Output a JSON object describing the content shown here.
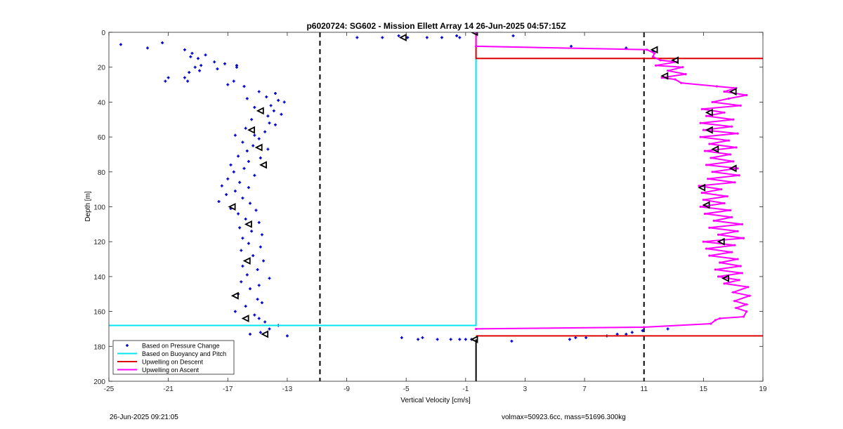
{
  "chart_data": {
    "type": "scatter",
    "title": "p6020724: SG602 - Mission Ellett Array 14 26-Jun-2025 04:57:15Z",
    "xlabel": "Vertical Velocity [cm/s]",
    "ylabel": "Depth [m]",
    "xlim": [
      -25,
      19
    ],
    "ylim": [
      0,
      200
    ],
    "y_reversed": true,
    "xticks": [
      -25,
      -21,
      -17,
      -13,
      -9,
      -5,
      -1,
      3,
      7,
      11,
      15,
      19
    ],
    "yticks": [
      0,
      20,
      40,
      60,
      80,
      100,
      120,
      140,
      160,
      180,
      200
    ],
    "grid": false,
    "legend_position": "bottom-left",
    "vlines_dashed": [
      -10.8,
      11.0
    ],
    "colors": {
      "pressure": "#0000cc",
      "buoyancy": "#00e5ee",
      "descent": "#dd0000",
      "ascent": "#ff00ff",
      "marker": "#000000"
    },
    "series": [
      {
        "name": "Based on Pressure Change",
        "style": "points",
        "points": [
          [
            -24.2,
            7
          ],
          [
            -22.4,
            9
          ],
          [
            -21.4,
            6
          ],
          [
            -19.9,
            10
          ],
          [
            -19.4,
            12
          ],
          [
            -19.5,
            14
          ],
          [
            -19.0,
            15
          ],
          [
            -18.5,
            13
          ],
          [
            -18.8,
            19
          ],
          [
            -17.9,
            17
          ],
          [
            -17.2,
            18
          ],
          [
            -16.4,
            19
          ],
          [
            -16.4,
            20
          ],
          [
            -19.2,
            20
          ],
          [
            -19.6,
            23
          ],
          [
            -19.9,
            26
          ],
          [
            -21.0,
            26
          ],
          [
            -21.2,
            28
          ],
          [
            -19.7,
            28
          ],
          [
            -18.9,
            22
          ],
          [
            -17.7,
            21
          ],
          [
            -17.0,
            30
          ],
          [
            -16.6,
            28
          ],
          [
            -15.9,
            31
          ],
          [
            -14.9,
            34
          ],
          [
            -13.8,
            35
          ],
          [
            -14.4,
            37
          ],
          [
            -15.7,
            38
          ],
          [
            -13.6,
            39
          ],
          [
            -13.2,
            40
          ],
          [
            -14.1,
            42
          ],
          [
            -15.2,
            43
          ],
          [
            -13.9,
            45
          ],
          [
            -13.4,
            47
          ],
          [
            -14.3,
            48
          ],
          [
            -15.4,
            50
          ],
          [
            -14.2,
            52
          ],
          [
            -13.8,
            53
          ],
          [
            -15.8,
            55
          ],
          [
            -14.5,
            57
          ],
          [
            -16.5,
            59
          ],
          [
            -15.2,
            59
          ],
          [
            -14.9,
            61
          ],
          [
            -16.0,
            63
          ],
          [
            -15.3,
            65
          ],
          [
            -14.3,
            67
          ],
          [
            -15.7,
            68
          ],
          [
            -16.3,
            71
          ],
          [
            -14.8,
            72
          ],
          [
            -15.6,
            74
          ],
          [
            -16.8,
            76
          ],
          [
            -15.9,
            78
          ],
          [
            -16.6,
            80
          ],
          [
            -15.2,
            82
          ],
          [
            -17.0,
            84
          ],
          [
            -16.2,
            86
          ],
          [
            -17.4,
            88
          ],
          [
            -15.6,
            89
          ],
          [
            -16.5,
            91
          ],
          [
            -17.1,
            93
          ],
          [
            -16.0,
            95
          ],
          [
            -17.6,
            97
          ],
          [
            -15.5,
            98
          ],
          [
            -16.8,
            101
          ],
          [
            -15.1,
            102
          ],
          [
            -16.3,
            104
          ],
          [
            -15.8,
            107
          ],
          [
            -14.9,
            109
          ],
          [
            -16.2,
            112
          ],
          [
            -15.4,
            114
          ],
          [
            -14.7,
            116
          ],
          [
            -16.0,
            118
          ],
          [
            -15.6,
            121
          ],
          [
            -14.8,
            123
          ],
          [
            -16.1,
            125
          ],
          [
            -15.3,
            128
          ],
          [
            -14.6,
            131
          ],
          [
            -16.0,
            134
          ],
          [
            -15.0,
            136
          ],
          [
            -15.7,
            139
          ],
          [
            -14.2,
            141
          ],
          [
            -16.1,
            143
          ],
          [
            -14.9,
            145
          ],
          [
            -15.5,
            147
          ],
          [
            -16.3,
            150
          ],
          [
            -15.0,
            153
          ],
          [
            -14.7,
            155
          ],
          [
            -15.8,
            157
          ],
          [
            -16.5,
            160
          ],
          [
            -15.2,
            162
          ],
          [
            -14.9,
            164
          ],
          [
            -14.5,
            166
          ],
          [
            -13.6,
            168
          ],
          [
            -14.2,
            170
          ],
          [
            -14.8,
            172
          ],
          [
            -13.0,
            174
          ],
          [
            -15.5,
            173
          ],
          [
            -8.3,
            3
          ],
          [
            -6.6,
            3
          ],
          [
            -5.5,
            2
          ],
          [
            -4.9,
            3
          ],
          [
            -3.6,
            3
          ],
          [
            -2.6,
            3
          ],
          [
            -1.6,
            2
          ],
          [
            -1.4,
            3
          ],
          [
            -5.3,
            175
          ],
          [
            -4.2,
            176
          ],
          [
            -3.9,
            175
          ],
          [
            -2.9,
            176
          ],
          [
            -2.0,
            176
          ],
          [
            -1.4,
            176
          ],
          [
            -1.0,
            176
          ],
          [
            -0.6,
            176
          ],
          [
            2.2,
            2
          ],
          [
            2.1,
            177
          ],
          [
            6.1,
            8
          ],
          [
            9.8,
            9
          ],
          [
            11.6,
            11
          ],
          [
            6.0,
            176
          ],
          [
            6.4,
            175
          ],
          [
            7.1,
            175
          ],
          [
            8.5,
            174
          ],
          [
            9.2,
            173
          ],
          [
            9.8,
            173
          ],
          [
            10.2,
            172
          ],
          [
            10.9,
            171
          ],
          [
            12.6,
            170
          ]
        ]
      },
      {
        "name": "Based on Buoyancy and Pitch",
        "style": "line",
        "points": [
          [
            -0.3,
            15
          ],
          [
            -0.3,
            168
          ],
          [
            -25,
            168
          ]
        ]
      },
      {
        "name": "Upwelling on Descent",
        "style": "line",
        "points": [
          [
            -0.3,
            0
          ],
          [
            -0.3,
            15
          ],
          [
            19,
            15
          ],
          null,
          [
            -0.3,
            174
          ],
          [
            19,
            174
          ]
        ]
      },
      {
        "name": "Upwelling on Ascent",
        "style": "line",
        "points": [
          [
            -0.3,
            170
          ],
          [
            11.0,
            169
          ],
          [
            15.5,
            167
          ],
          [
            15.8,
            165
          ],
          [
            16.1,
            164
          ],
          [
            17.7,
            163
          ],
          [
            17.9,
            160
          ],
          [
            17.2,
            158
          ],
          [
            17.9,
            156
          ],
          [
            17.1,
            154
          ],
          [
            18.1,
            151
          ],
          [
            17.0,
            149
          ],
          [
            18.0,
            146
          ],
          [
            16.4,
            144
          ],
          [
            17.4,
            142
          ],
          [
            16.0,
            140
          ],
          [
            17.6,
            138
          ],
          [
            15.8,
            136
          ],
          [
            17.5,
            134
          ],
          [
            16.1,
            132
          ],
          [
            17.3,
            130
          ],
          [
            15.4,
            128
          ],
          [
            16.9,
            126
          ],
          [
            15.2,
            124
          ],
          [
            17.1,
            122
          ],
          [
            15.0,
            120
          ],
          [
            17.7,
            118
          ],
          [
            16.0,
            116
          ],
          [
            17.3,
            114
          ],
          [
            15.4,
            112
          ],
          [
            17.6,
            110
          ],
          [
            15.7,
            108
          ],
          [
            16.9,
            106
          ],
          [
            15.1,
            104
          ],
          [
            16.8,
            102
          ],
          [
            14.8,
            100
          ],
          [
            16.4,
            98
          ],
          [
            15.0,
            96
          ],
          [
            16.6,
            94
          ],
          [
            14.9,
            92
          ],
          [
            16.2,
            90
          ],
          [
            14.7,
            88
          ],
          [
            17.1,
            86
          ],
          [
            15.3,
            84
          ],
          [
            17.4,
            82
          ],
          [
            15.6,
            80
          ],
          [
            17.3,
            78
          ],
          [
            15.2,
            76
          ],
          [
            17.0,
            74
          ],
          [
            15.5,
            72
          ],
          [
            16.8,
            70
          ],
          [
            15.1,
            68
          ],
          [
            17.2,
            66
          ],
          [
            15.4,
            64
          ],
          [
            16.7,
            62
          ],
          [
            14.8,
            60
          ],
          [
            17.3,
            58
          ],
          [
            15.0,
            56
          ],
          [
            16.9,
            54
          ],
          [
            14.8,
            52
          ],
          [
            17.0,
            50
          ],
          [
            15.2,
            48
          ],
          [
            16.4,
            46
          ],
          [
            14.9,
            44
          ],
          [
            17.5,
            42
          ],
          [
            15.6,
            40
          ],
          [
            16.7,
            38
          ],
          [
            17.9,
            36
          ],
          [
            16.4,
            34
          ],
          [
            17.2,
            32
          ],
          [
            15.9,
            31
          ],
          [
            13.5,
            29
          ],
          [
            13.1,
            27
          ],
          [
            12.2,
            26
          ],
          [
            13.8,
            24
          ],
          [
            12.6,
            22
          ],
          [
            13.6,
            20
          ],
          [
            11.8,
            19
          ],
          [
            13.2,
            17
          ],
          [
            12.1,
            16
          ],
          [
            11.6,
            14
          ],
          [
            11.7,
            12
          ],
          [
            11.2,
            10
          ],
          [
            -0.3,
            8
          ],
          [
            -0.3,
            0
          ]
        ]
      }
    ],
    "markers": {
      "style": "triangle",
      "points": [
        [
          -0.4,
          0
        ],
        [
          -5.2,
          3
        ],
        [
          -14.8,
          45
        ],
        [
          -15.4,
          56
        ],
        [
          -14.9,
          66
        ],
        [
          -14.6,
          76
        ],
        [
          -16.7,
          100
        ],
        [
          -15.6,
          110
        ],
        [
          -15.7,
          131
        ],
        [
          -16.5,
          151
        ],
        [
          -15.8,
          164
        ],
        [
          -14.5,
          173
        ],
        [
          -0.4,
          176
        ],
        [
          11.7,
          10
        ],
        [
          13.1,
          16
        ],
        [
          12.4,
          25
        ],
        [
          17.0,
          34
        ],
        [
          15.4,
          46
        ],
        [
          15.4,
          56
        ],
        [
          15.8,
          67
        ],
        [
          17.0,
          78
        ],
        [
          14.9,
          89
        ],
        [
          15.2,
          99
        ],
        [
          16.2,
          120
        ],
        [
          16.5,
          141
        ]
      ]
    }
  },
  "footer": {
    "timestamp": "26-Jun-2025 09:21:05",
    "stats": "volmax=50923.6cc, mass=51696.300kg"
  }
}
